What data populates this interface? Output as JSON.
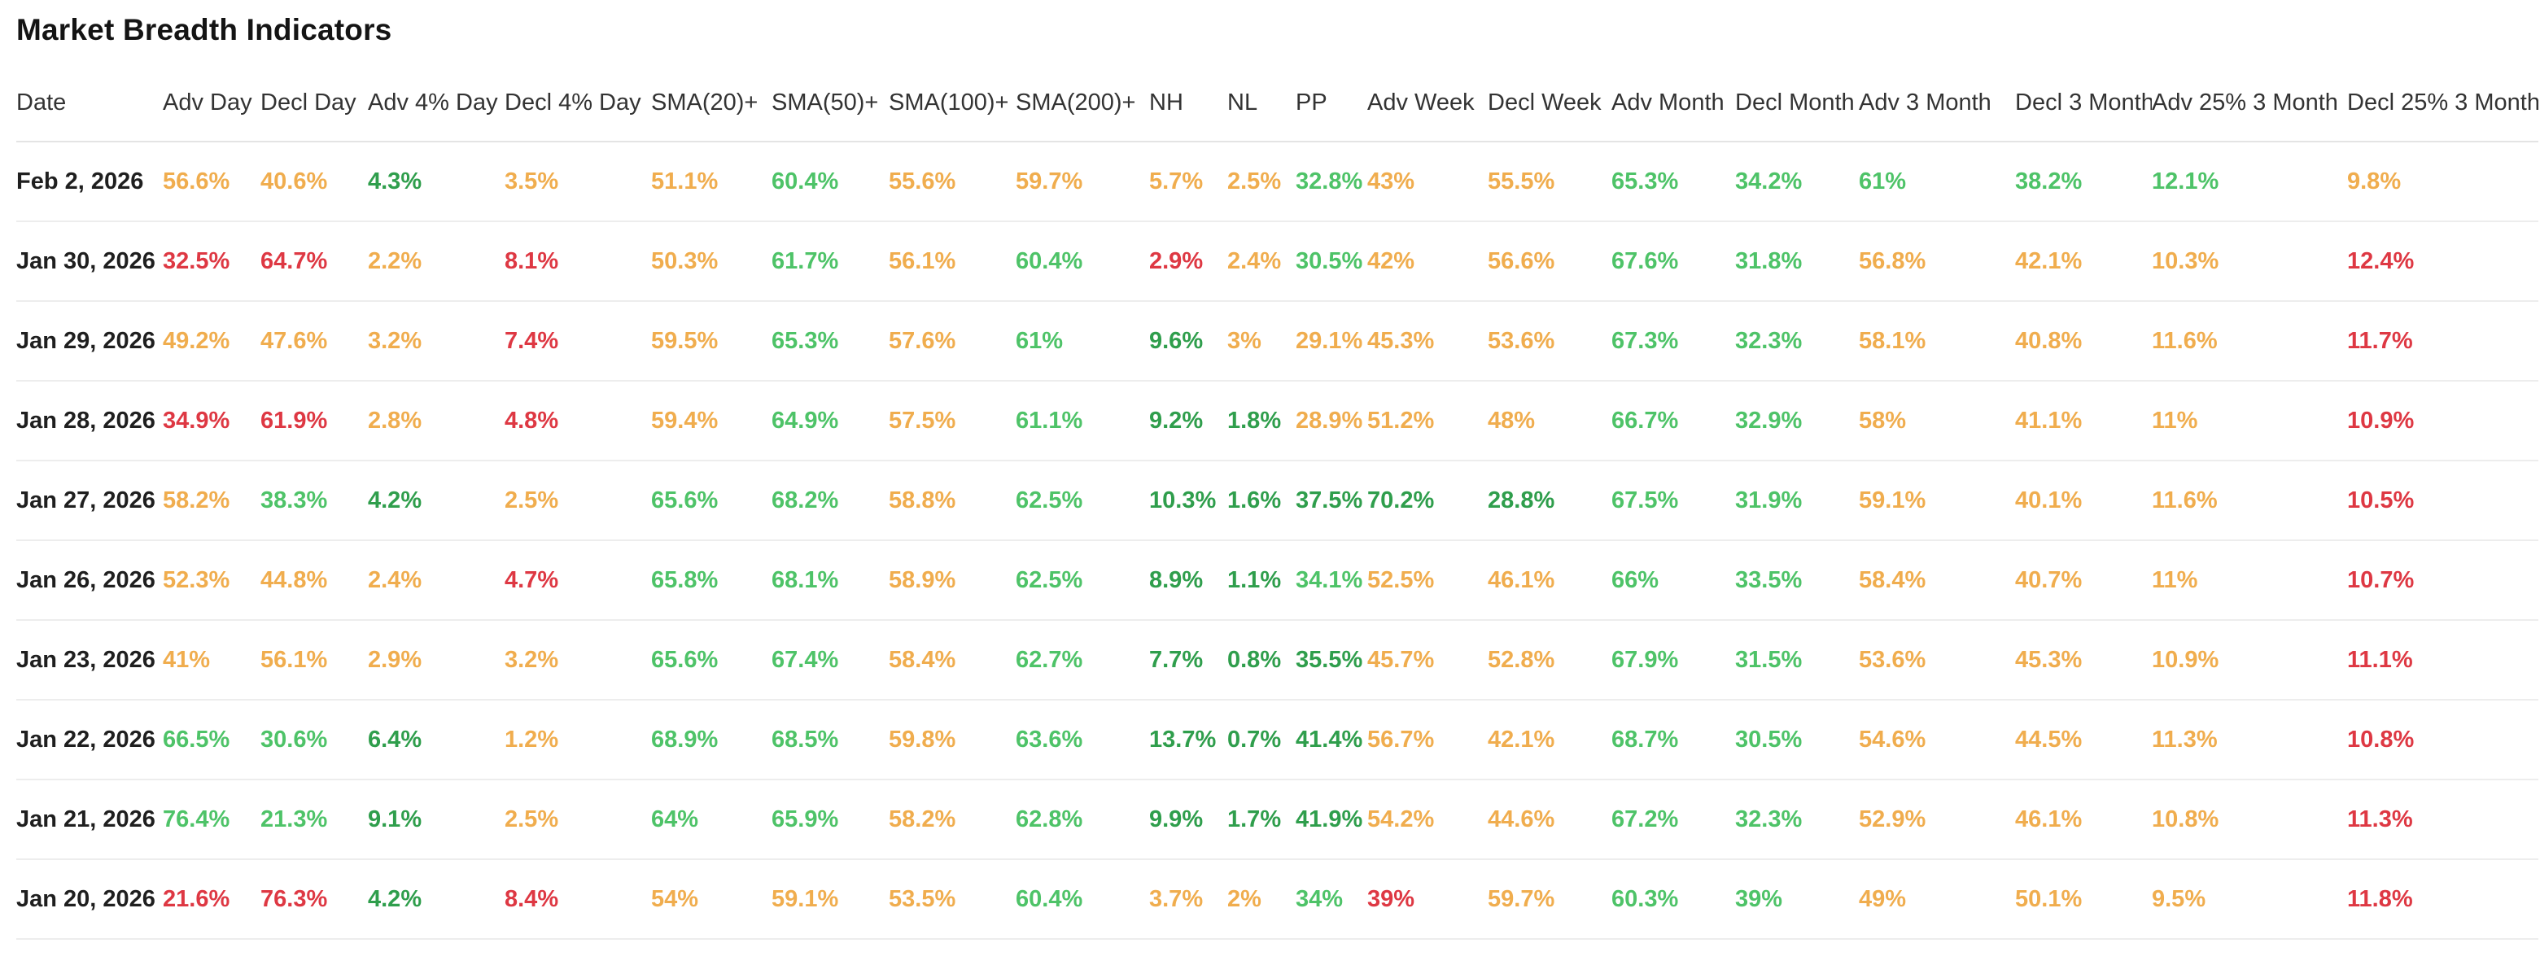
{
  "title": "Market Breadth Indicators",
  "palette": {
    "green": "#4ec368",
    "green_dark": "#2f9e4c",
    "orange": "#f0ad4e",
    "red": "#de3843",
    "date_text": "#1f1f1f",
    "header_text": "#333333",
    "divider": "#ededed"
  },
  "table": {
    "columns": [
      "Date",
      "Adv Day",
      "Decl Day",
      "Adv 4% Day",
      "Decl 4% Day",
      "SMA(20)+",
      "SMA(50)+",
      "SMA(100)+",
      "SMA(200)+",
      "NH",
      "NL",
      "PP",
      "Adv Week",
      "Decl Week",
      "Adv Month",
      "Decl Month",
      "Adv 3 Month",
      "Decl 3 Month",
      "Adv 25% 3 Month",
      "Decl 25% 3 Month"
    ],
    "rows": [
      {
        "date": "Feb 2, 2026",
        "cells": [
          {
            "v": "56.6%",
            "c": "orange"
          },
          {
            "v": "40.6%",
            "c": "orange"
          },
          {
            "v": "4.3%",
            "c": "green_dark"
          },
          {
            "v": "3.5%",
            "c": "orange"
          },
          {
            "v": "51.1%",
            "c": "orange"
          },
          {
            "v": "60.4%",
            "c": "green"
          },
          {
            "v": "55.6%",
            "c": "orange"
          },
          {
            "v": "59.7%",
            "c": "orange"
          },
          {
            "v": "5.7%",
            "c": "orange"
          },
          {
            "v": "2.5%",
            "c": "orange"
          },
          {
            "v": "32.8%",
            "c": "green"
          },
          {
            "v": "43%",
            "c": "orange"
          },
          {
            "v": "55.5%",
            "c": "orange"
          },
          {
            "v": "65.3%",
            "c": "green"
          },
          {
            "v": "34.2%",
            "c": "green"
          },
          {
            "v": "61%",
            "c": "green"
          },
          {
            "v": "38.2%",
            "c": "green"
          },
          {
            "v": "12.1%",
            "c": "green"
          },
          {
            "v": "9.8%",
            "c": "orange"
          }
        ]
      },
      {
        "date": "Jan 30, 2026",
        "cells": [
          {
            "v": "32.5%",
            "c": "red"
          },
          {
            "v": "64.7%",
            "c": "red"
          },
          {
            "v": "2.2%",
            "c": "orange"
          },
          {
            "v": "8.1%",
            "c": "red"
          },
          {
            "v": "50.3%",
            "c": "orange"
          },
          {
            "v": "61.7%",
            "c": "green"
          },
          {
            "v": "56.1%",
            "c": "orange"
          },
          {
            "v": "60.4%",
            "c": "green"
          },
          {
            "v": "2.9%",
            "c": "red"
          },
          {
            "v": "2.4%",
            "c": "orange"
          },
          {
            "v": "30.5%",
            "c": "green"
          },
          {
            "v": "42%",
            "c": "orange"
          },
          {
            "v": "56.6%",
            "c": "orange"
          },
          {
            "v": "67.6%",
            "c": "green"
          },
          {
            "v": "31.8%",
            "c": "green"
          },
          {
            "v": "56.8%",
            "c": "orange"
          },
          {
            "v": "42.1%",
            "c": "orange"
          },
          {
            "v": "10.3%",
            "c": "orange"
          },
          {
            "v": "12.4%",
            "c": "red"
          }
        ]
      },
      {
        "date": "Jan 29, 2026",
        "cells": [
          {
            "v": "49.2%",
            "c": "orange"
          },
          {
            "v": "47.6%",
            "c": "orange"
          },
          {
            "v": "3.2%",
            "c": "orange"
          },
          {
            "v": "7.4%",
            "c": "red"
          },
          {
            "v": "59.5%",
            "c": "orange"
          },
          {
            "v": "65.3%",
            "c": "green"
          },
          {
            "v": "57.6%",
            "c": "orange"
          },
          {
            "v": "61%",
            "c": "green"
          },
          {
            "v": "9.6%",
            "c": "green_dark"
          },
          {
            "v": "3%",
            "c": "orange"
          },
          {
            "v": "29.1%",
            "c": "orange"
          },
          {
            "v": "45.3%",
            "c": "orange"
          },
          {
            "v": "53.6%",
            "c": "orange"
          },
          {
            "v": "67.3%",
            "c": "green"
          },
          {
            "v": "32.3%",
            "c": "green"
          },
          {
            "v": "58.1%",
            "c": "orange"
          },
          {
            "v": "40.8%",
            "c": "orange"
          },
          {
            "v": "11.6%",
            "c": "orange"
          },
          {
            "v": "11.7%",
            "c": "red"
          }
        ]
      },
      {
        "date": "Jan 28, 2026",
        "cells": [
          {
            "v": "34.9%",
            "c": "red"
          },
          {
            "v": "61.9%",
            "c": "red"
          },
          {
            "v": "2.8%",
            "c": "orange"
          },
          {
            "v": "4.8%",
            "c": "red"
          },
          {
            "v": "59.4%",
            "c": "orange"
          },
          {
            "v": "64.9%",
            "c": "green"
          },
          {
            "v": "57.5%",
            "c": "orange"
          },
          {
            "v": "61.1%",
            "c": "green"
          },
          {
            "v": "9.2%",
            "c": "green_dark"
          },
          {
            "v": "1.8%",
            "c": "green_dark"
          },
          {
            "v": "28.9%",
            "c": "orange"
          },
          {
            "v": "51.2%",
            "c": "orange"
          },
          {
            "v": "48%",
            "c": "orange"
          },
          {
            "v": "66.7%",
            "c": "green"
          },
          {
            "v": "32.9%",
            "c": "green"
          },
          {
            "v": "58%",
            "c": "orange"
          },
          {
            "v": "41.1%",
            "c": "orange"
          },
          {
            "v": "11%",
            "c": "orange"
          },
          {
            "v": "10.9%",
            "c": "red"
          }
        ]
      },
      {
        "date": "Jan 27, 2026",
        "cells": [
          {
            "v": "58.2%",
            "c": "orange"
          },
          {
            "v": "38.3%",
            "c": "green"
          },
          {
            "v": "4.2%",
            "c": "green_dark"
          },
          {
            "v": "2.5%",
            "c": "orange"
          },
          {
            "v": "65.6%",
            "c": "green"
          },
          {
            "v": "68.2%",
            "c": "green"
          },
          {
            "v": "58.8%",
            "c": "orange"
          },
          {
            "v": "62.5%",
            "c": "green"
          },
          {
            "v": "10.3%",
            "c": "green_dark"
          },
          {
            "v": "1.6%",
            "c": "green_dark"
          },
          {
            "v": "37.5%",
            "c": "green_dark"
          },
          {
            "v": "70.2%",
            "c": "green_dark"
          },
          {
            "v": "28.8%",
            "c": "green_dark"
          },
          {
            "v": "67.5%",
            "c": "green"
          },
          {
            "v": "31.9%",
            "c": "green"
          },
          {
            "v": "59.1%",
            "c": "orange"
          },
          {
            "v": "40.1%",
            "c": "orange"
          },
          {
            "v": "11.6%",
            "c": "orange"
          },
          {
            "v": "10.5%",
            "c": "red"
          }
        ]
      },
      {
        "date": "Jan 26, 2026",
        "cells": [
          {
            "v": "52.3%",
            "c": "orange"
          },
          {
            "v": "44.8%",
            "c": "orange"
          },
          {
            "v": "2.4%",
            "c": "orange"
          },
          {
            "v": "4.7%",
            "c": "red"
          },
          {
            "v": "65.8%",
            "c": "green"
          },
          {
            "v": "68.1%",
            "c": "green"
          },
          {
            "v": "58.9%",
            "c": "orange"
          },
          {
            "v": "62.5%",
            "c": "green"
          },
          {
            "v": "8.9%",
            "c": "green_dark"
          },
          {
            "v": "1.1%",
            "c": "green_dark"
          },
          {
            "v": "34.1%",
            "c": "green"
          },
          {
            "v": "52.5%",
            "c": "orange"
          },
          {
            "v": "46.1%",
            "c": "orange"
          },
          {
            "v": "66%",
            "c": "green"
          },
          {
            "v": "33.5%",
            "c": "green"
          },
          {
            "v": "58.4%",
            "c": "orange"
          },
          {
            "v": "40.7%",
            "c": "orange"
          },
          {
            "v": "11%",
            "c": "orange"
          },
          {
            "v": "10.7%",
            "c": "red"
          }
        ]
      },
      {
        "date": "Jan 23, 2026",
        "cells": [
          {
            "v": "41%",
            "c": "orange"
          },
          {
            "v": "56.1%",
            "c": "orange"
          },
          {
            "v": "2.9%",
            "c": "orange"
          },
          {
            "v": "3.2%",
            "c": "orange"
          },
          {
            "v": "65.6%",
            "c": "green"
          },
          {
            "v": "67.4%",
            "c": "green"
          },
          {
            "v": "58.4%",
            "c": "orange"
          },
          {
            "v": "62.7%",
            "c": "green"
          },
          {
            "v": "7.7%",
            "c": "green_dark"
          },
          {
            "v": "0.8%",
            "c": "green_dark"
          },
          {
            "v": "35.5%",
            "c": "green_dark"
          },
          {
            "v": "45.7%",
            "c": "orange"
          },
          {
            "v": "52.8%",
            "c": "orange"
          },
          {
            "v": "67.9%",
            "c": "green"
          },
          {
            "v": "31.5%",
            "c": "green"
          },
          {
            "v": "53.6%",
            "c": "orange"
          },
          {
            "v": "45.3%",
            "c": "orange"
          },
          {
            "v": "10.9%",
            "c": "orange"
          },
          {
            "v": "11.1%",
            "c": "red"
          }
        ]
      },
      {
        "date": "Jan 22, 2026",
        "cells": [
          {
            "v": "66.5%",
            "c": "green"
          },
          {
            "v": "30.6%",
            "c": "green"
          },
          {
            "v": "6.4%",
            "c": "green_dark"
          },
          {
            "v": "1.2%",
            "c": "orange"
          },
          {
            "v": "68.9%",
            "c": "green"
          },
          {
            "v": "68.5%",
            "c": "green"
          },
          {
            "v": "59.8%",
            "c": "orange"
          },
          {
            "v": "63.6%",
            "c": "green"
          },
          {
            "v": "13.7%",
            "c": "green_dark"
          },
          {
            "v": "0.7%",
            "c": "green_dark"
          },
          {
            "v": "41.4%",
            "c": "green_dark"
          },
          {
            "v": "56.7%",
            "c": "orange"
          },
          {
            "v": "42.1%",
            "c": "orange"
          },
          {
            "v": "68.7%",
            "c": "green"
          },
          {
            "v": "30.5%",
            "c": "green"
          },
          {
            "v": "54.6%",
            "c": "orange"
          },
          {
            "v": "44.5%",
            "c": "orange"
          },
          {
            "v": "11.3%",
            "c": "orange"
          },
          {
            "v": "10.8%",
            "c": "red"
          }
        ]
      },
      {
        "date": "Jan 21, 2026",
        "cells": [
          {
            "v": "76.4%",
            "c": "green"
          },
          {
            "v": "21.3%",
            "c": "green"
          },
          {
            "v": "9.1%",
            "c": "green_dark"
          },
          {
            "v": "2.5%",
            "c": "orange"
          },
          {
            "v": "64%",
            "c": "green"
          },
          {
            "v": "65.9%",
            "c": "green"
          },
          {
            "v": "58.2%",
            "c": "orange"
          },
          {
            "v": "62.8%",
            "c": "green"
          },
          {
            "v": "9.9%",
            "c": "green_dark"
          },
          {
            "v": "1.7%",
            "c": "green_dark"
          },
          {
            "v": "41.9%",
            "c": "green_dark"
          },
          {
            "v": "54.2%",
            "c": "orange"
          },
          {
            "v": "44.6%",
            "c": "orange"
          },
          {
            "v": "67.2%",
            "c": "green"
          },
          {
            "v": "32.3%",
            "c": "green"
          },
          {
            "v": "52.9%",
            "c": "orange"
          },
          {
            "v": "46.1%",
            "c": "orange"
          },
          {
            "v": "10.8%",
            "c": "orange"
          },
          {
            "v": "11.3%",
            "c": "red"
          }
        ]
      },
      {
        "date": "Jan 20, 2026",
        "cells": [
          {
            "v": "21.6%",
            "c": "red"
          },
          {
            "v": "76.3%",
            "c": "red"
          },
          {
            "v": "4.2%",
            "c": "green_dark"
          },
          {
            "v": "8.4%",
            "c": "red"
          },
          {
            "v": "54%",
            "c": "orange"
          },
          {
            "v": "59.1%",
            "c": "orange"
          },
          {
            "v": "53.5%",
            "c": "orange"
          },
          {
            "v": "60.4%",
            "c": "green"
          },
          {
            "v": "3.7%",
            "c": "orange"
          },
          {
            "v": "2%",
            "c": "orange"
          },
          {
            "v": "34%",
            "c": "green"
          },
          {
            "v": "39%",
            "c": "red"
          },
          {
            "v": "59.7%",
            "c": "orange"
          },
          {
            "v": "60.3%",
            "c": "green"
          },
          {
            "v": "39%",
            "c": "green"
          },
          {
            "v": "49%",
            "c": "orange"
          },
          {
            "v": "50.1%",
            "c": "orange"
          },
          {
            "v": "9.5%",
            "c": "orange"
          },
          {
            "v": "11.8%",
            "c": "red"
          }
        ]
      }
    ]
  }
}
